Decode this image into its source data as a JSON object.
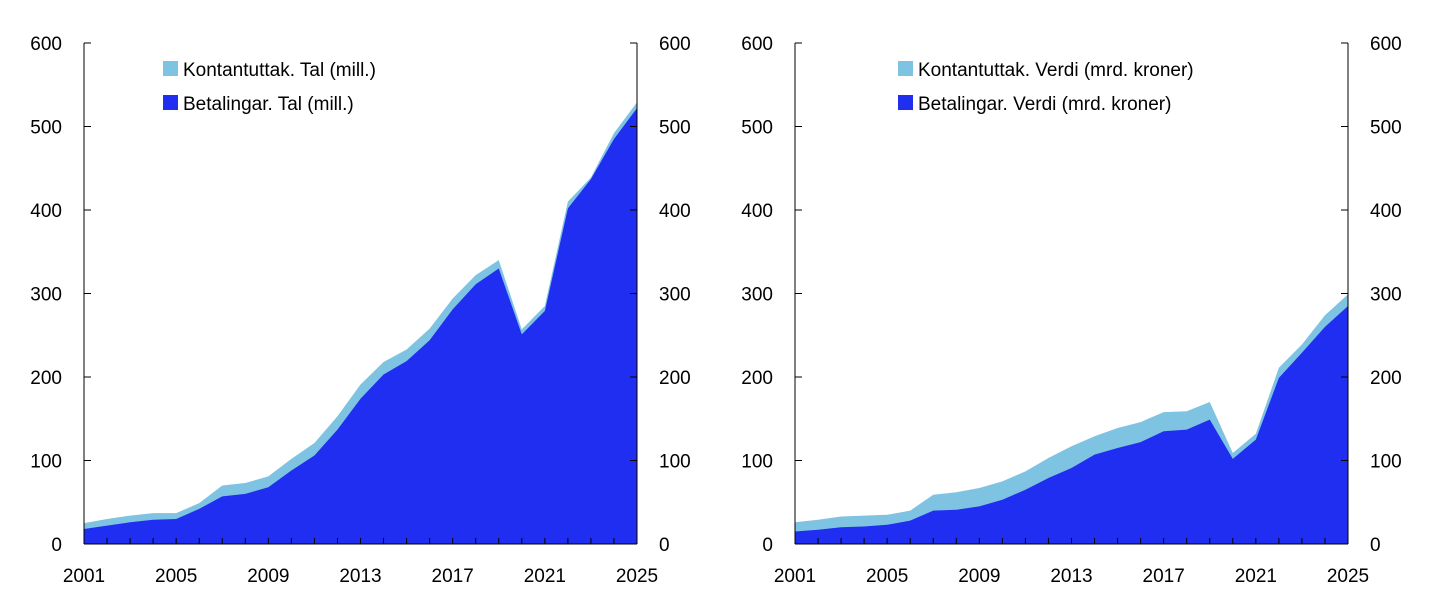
{
  "colors": {
    "stacked_top": "#7ec3e2",
    "base": "#1f2ef0",
    "axis": "#000000"
  },
  "chart_data": [
    {
      "type": "area",
      "stacked": true,
      "x": [
        2001,
        2002,
        2003,
        2004,
        2005,
        2006,
        2007,
        2008,
        2009,
        2010,
        2011,
        2012,
        2013,
        2014,
        2015,
        2016,
        2017,
        2018,
        2019,
        2020,
        2021,
        2022,
        2023,
        2024,
        2025
      ],
      "series": [
        {
          "name": "Betalingar. Tal (mill.)",
          "color": "#1f2ef0",
          "values": [
            18,
            22,
            26,
            29,
            30,
            42,
            57,
            60,
            68,
            88,
            106,
            137,
            174,
            203,
            219,
            244,
            281,
            311,
            330,
            251,
            279,
            402,
            437,
            485,
            522
          ]
        },
        {
          "name": "Kontantuttak. Tal (mill.)",
          "color": "#7ec3e2",
          "values": [
            7,
            8,
            8,
            8,
            7,
            7,
            13,
            13,
            13,
            14,
            15,
            16,
            17,
            15,
            14,
            14,
            13,
            11,
            10,
            6,
            6,
            8,
            2,
            7,
            7
          ]
        }
      ],
      "xticks": [
        "2001",
        "2005",
        "2009",
        "2013",
        "2017",
        "2021",
        "2025"
      ],
      "yticks_left": [
        "0",
        "100",
        "200",
        "300",
        "400",
        "500",
        "600"
      ],
      "yticks_right": [
        "0",
        "100",
        "200",
        "300",
        "400",
        "500",
        "600"
      ],
      "ylim": [
        0,
        600
      ],
      "xlim": [
        2001,
        2025
      ],
      "legend_position": "top-left",
      "grid": false,
      "title": "",
      "xlabel": "",
      "ylabel": ""
    },
    {
      "type": "area",
      "stacked": true,
      "x": [
        2001,
        2002,
        2003,
        2004,
        2005,
        2006,
        2007,
        2008,
        2009,
        2010,
        2011,
        2012,
        2013,
        2014,
        2015,
        2016,
        2017,
        2018,
        2019,
        2020,
        2021,
        2022,
        2023,
        2024,
        2025
      ],
      "series": [
        {
          "name": "Betalingar. Verdi (mrd. kroner)",
          "color": "#1f2ef0",
          "values": [
            15,
            17,
            20,
            21,
            23,
            28,
            40,
            41,
            45,
            53,
            65,
            79,
            91,
            107,
            115,
            122,
            135,
            137,
            149,
            102,
            125,
            199,
            229,
            260,
            285
          ]
        },
        {
          "name": "Kontantuttak. Verdi (mrd. kroner)",
          "color": "#7ec3e2",
          "values": [
            11,
            12,
            13,
            13,
            12,
            12,
            19,
            21,
            22,
            22,
            22,
            24,
            26,
            22,
            24,
            24,
            23,
            22,
            21,
            7,
            7,
            12,
            10,
            14,
            14
          ]
        }
      ],
      "xticks": [
        "2001",
        "2005",
        "2009",
        "2013",
        "2017",
        "2021",
        "2025"
      ],
      "yticks_left": [
        "0",
        "100",
        "200",
        "300",
        "400",
        "500",
        "600"
      ],
      "yticks_right": [
        "0",
        "100",
        "200",
        "300",
        "400",
        "500",
        "600"
      ],
      "ylim": [
        0,
        600
      ],
      "xlim": [
        2001,
        2025
      ],
      "legend_position": "top-left",
      "grid": false,
      "title": "",
      "xlabel": "",
      "ylabel": ""
    }
  ]
}
